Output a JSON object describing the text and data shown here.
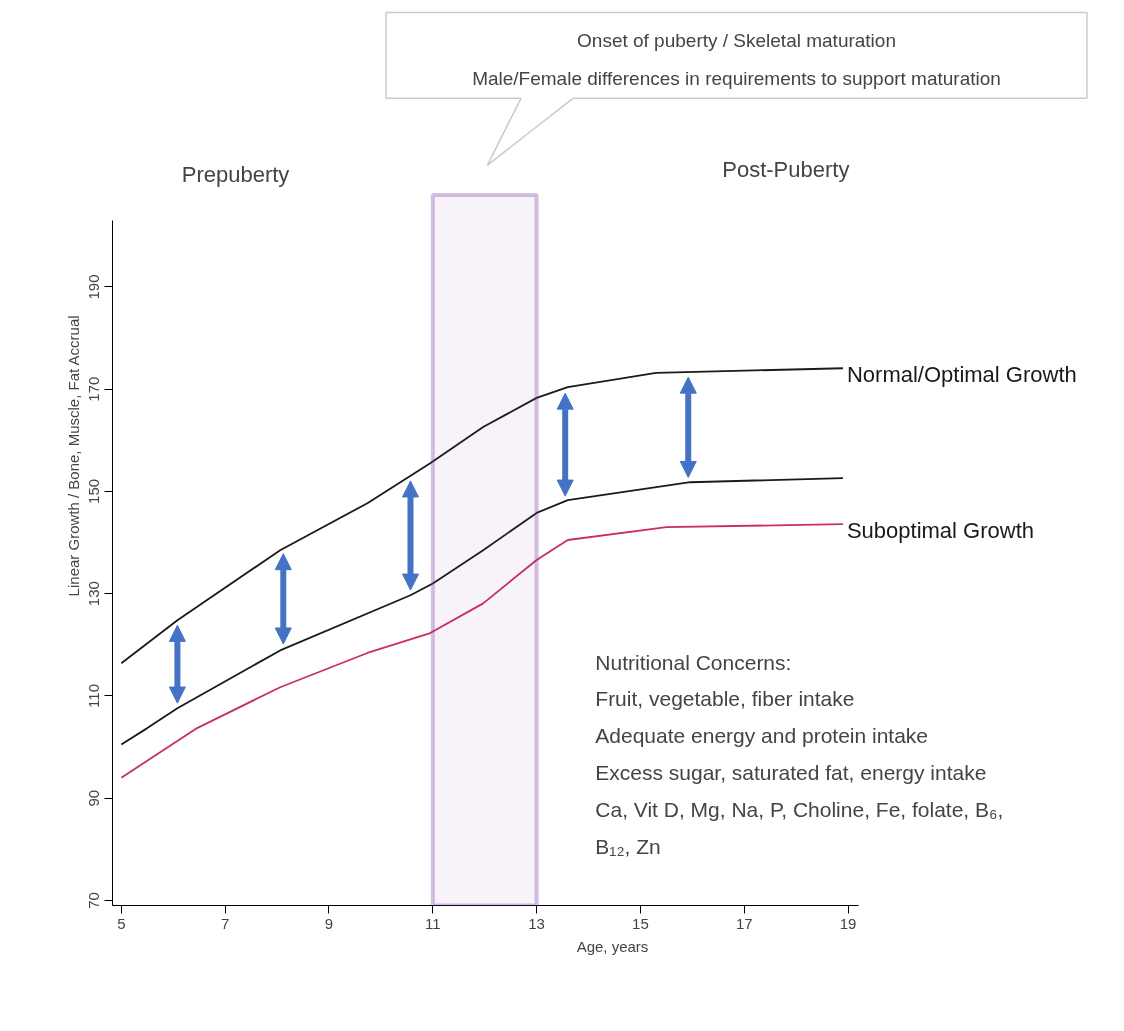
{
  "chart_data": {
    "type": "line",
    "xlabel": "Age, years",
    "ylabel": "Linear Growth / Bone, Muscle, Fat Accrual",
    "xlim": [
      4.83,
      19.2
    ],
    "ylim": [
      69,
      203
    ],
    "xticks": [
      5,
      7,
      9,
      11,
      13,
      15,
      17,
      19
    ],
    "yticks": [
      70,
      90,
      110,
      130,
      150,
      170,
      190
    ],
    "grid": false,
    "legend": false,
    "marker": "none",
    "line_style": "solid",
    "series": [
      {
        "name": "Normal/Optimal Growth",
        "color": "#1a1a1a",
        "x": [
          5,
          6.08,
          8.06,
          9.74,
          10.95,
          11.97,
          13.0,
          13.6,
          15.3,
          18.9
        ],
        "values": [
          116.4,
          124.8,
          138.5,
          147.7,
          155.5,
          162.6,
          168.3,
          170.4,
          173.2,
          174.1
        ]
      },
      {
        "color": "#1a1a1a",
        "x": [
          5,
          5.5,
          6.08,
          8.06,
          10.57,
          11.0,
          11.97,
          13.0,
          13.6,
          15.96,
          18.9
        ],
        "values": [
          100.5,
          103.7,
          107.6,
          118.9,
          129.7,
          132,
          138.5,
          145.8,
          148.3,
          151.8,
          152.6
        ]
      },
      {
        "name": "Suboptimal Growth",
        "color": "#c8305a",
        "x": [
          5,
          6.46,
          8.06,
          9.74,
          10.95,
          11.97,
          13.0,
          13.6,
          15.5,
          18.9
        ],
        "values": [
          94,
          103.7,
          111.7,
          118.4,
          122.3,
          128.1,
          136.6,
          140.5,
          143,
          143.6
        ]
      }
    ],
    "bands": [
      {
        "axis": "x",
        "from": 11,
        "to": 13,
        "color": "#7030a0"
      }
    ],
    "annotations": [
      "Prepuberty",
      "Post-Puberty",
      "Onset of puberty / Skeletal maturation\nMale/Female differences in requirements to support maturation",
      "Nutritional Concerns:\nFruit, vegetable, fiber intake\nAdequate energy and protein intake\nExcess sugar, saturated fat, energy intake\nCa, Vit D, Mg, Na, P, Choline, Fe, folate, B₆,\nB₁₂, Zn"
    ]
  }
}
